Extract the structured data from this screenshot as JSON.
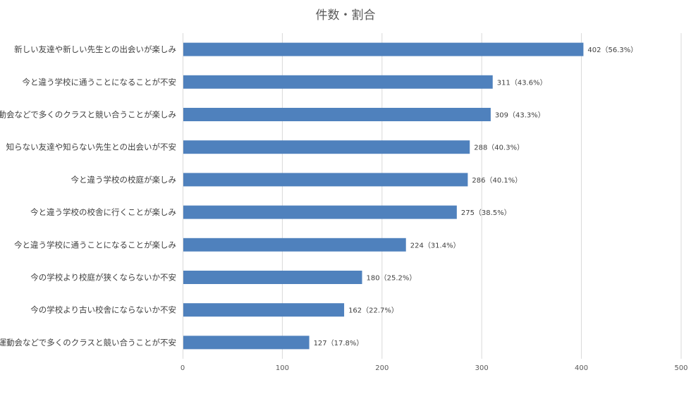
{
  "chart_data": {
    "type": "bar",
    "orientation": "horizontal",
    "title": "件数・割合",
    "categories": [
      "新しい友達や新しい先生との出会いが楽しみ",
      "今と違う学校に通うことになることが不安",
      "運動会などで多くのクラスと競い合うことが楽しみ",
      "知らない友達や知らない先生との出会いが不安",
      "今と違う学校の校庭が楽しみ",
      "今と違う学校の校舎に行くことが楽しみ",
      "今と違う学校に通うことになることが楽しみ",
      "今の学校より校庭が狭くならないか不安",
      "今の学校より古い校舎にならないか不安",
      "運動会などで多くのクラスと競い合うことが不安"
    ],
    "values": [
      402,
      311,
      309,
      288,
      286,
      275,
      224,
      180,
      162,
      127
    ],
    "data_labels": [
      "402（56.3%）",
      "311（43.6%）",
      "309（43.3%）",
      "288（40.3%）",
      "286（40.1%）",
      "275（38.5%）",
      "224（31.4%）",
      "180（25.2%）",
      "162（22.7%）",
      "127（17.8%）"
    ],
    "xlim": [
      0,
      500
    ],
    "x_ticks": [
      "0",
      "100",
      "200",
      "300",
      "400",
      "500"
    ],
    "grid": "vertical",
    "legend": "none",
    "bar_color": "#4f81bd",
    "grid_color": "#d9d9d9"
  }
}
